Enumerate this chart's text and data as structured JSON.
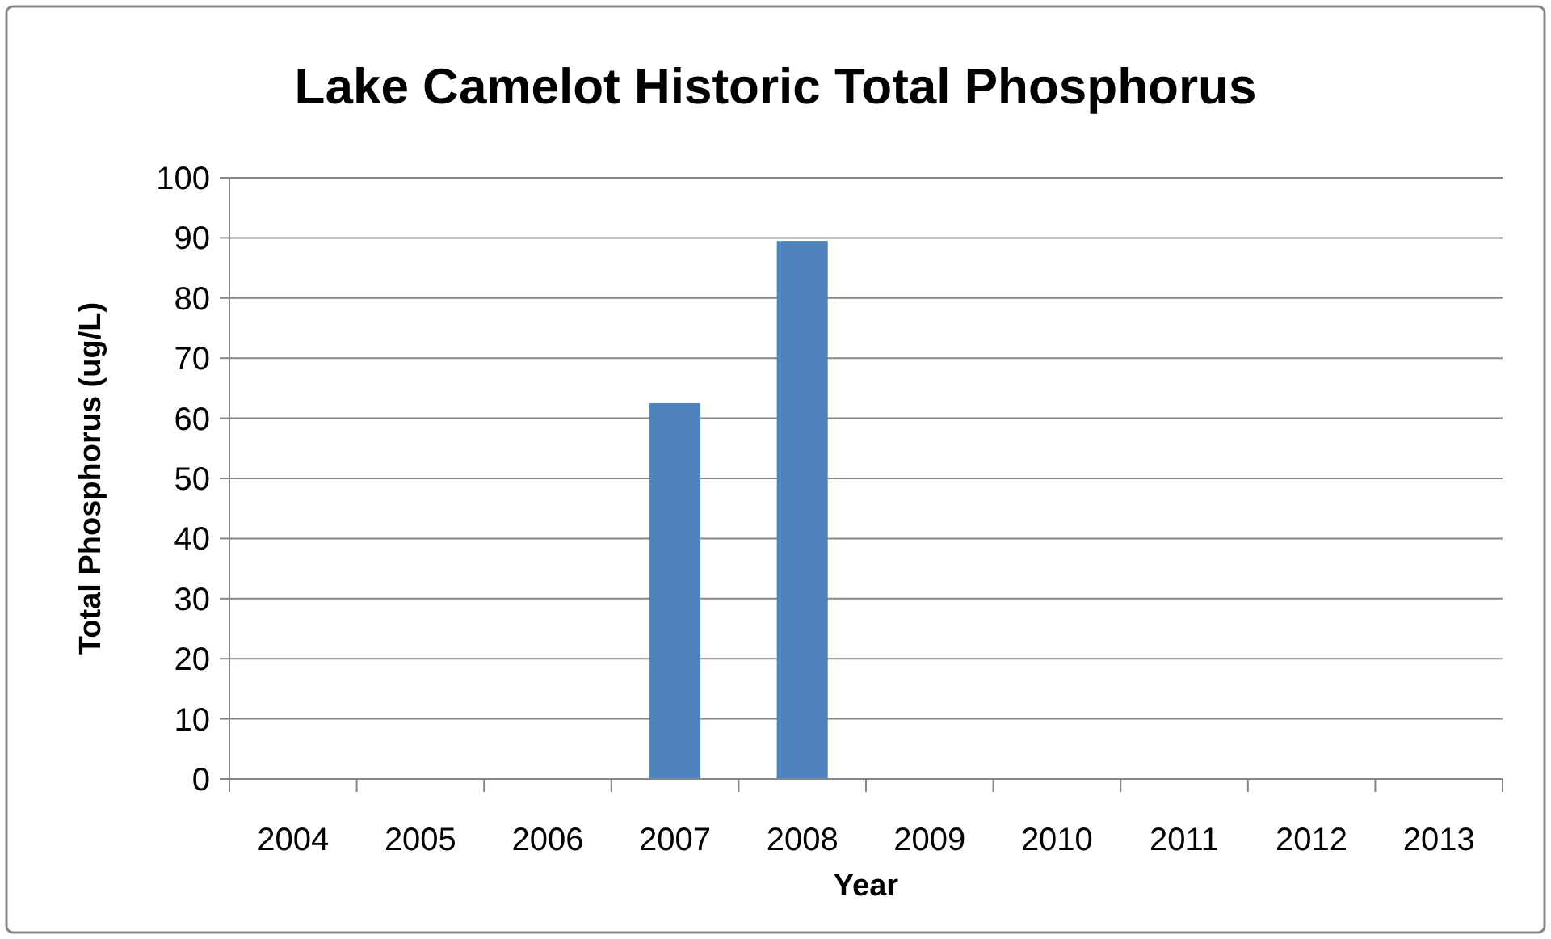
{
  "chart_data": {
    "type": "bar",
    "title": "Lake Camelot Historic Total Phosphorus",
    "xlabel": "Year",
    "ylabel": "Total Phosphorus (ug/L)",
    "categories": [
      "2004",
      "2005",
      "2006",
      "2007",
      "2008",
      "2009",
      "2010",
      "2011",
      "2012",
      "2013"
    ],
    "values": [
      null,
      null,
      null,
      62.5,
      89.5,
      null,
      null,
      null,
      null,
      null
    ],
    "color": "#4f81bd",
    "ylim": [
      0,
      100
    ],
    "yticks": [
      0,
      10,
      20,
      30,
      40,
      50,
      60,
      70,
      80,
      90,
      100
    ],
    "grid": "y"
  }
}
